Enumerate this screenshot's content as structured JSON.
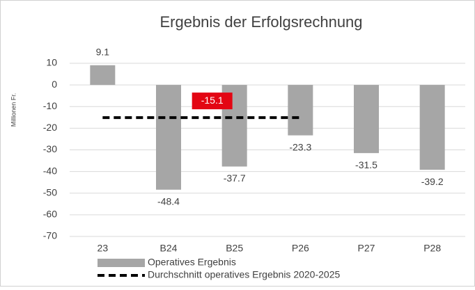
{
  "chart_data": {
    "type": "bar",
    "title": "Ergebnis der Erfolgsrechnung",
    "y_label": "Millionen Fr.",
    "categories": [
      "23",
      "B24",
      "B25",
      "P26",
      "P27",
      "P28"
    ],
    "series": [
      {
        "name": "Operatives Ergebnis",
        "color": "#a6a6a6",
        "values": [
          9.1,
          -48.4,
          -37.7,
          -23.3,
          -31.5,
          -39.2
        ]
      },
      {
        "name": "Durchschnitt operatives Ergebnis 2020-2025",
        "type": "line",
        "dashed": true,
        "color": "#000000",
        "label_color": "#e30613",
        "values": [
          -15.1,
          -15.1,
          -15.1,
          -15.1,
          null,
          null
        ]
      }
    ],
    "ylim": [
      -70,
      10
    ],
    "yticks": [
      -70,
      -60,
      -50,
      -40,
      -30,
      -20,
      -10,
      0,
      10
    ],
    "grid": true,
    "legend": "bottom"
  }
}
